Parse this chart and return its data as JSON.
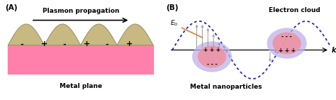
{
  "panel_A": {
    "label": "(A)",
    "title": "Plasmon propagation",
    "subtitle": "Metal plane",
    "pink_color": "#FF80AA",
    "bump_face": "#C8B882",
    "bump_edge": "#9B8B5A",
    "text_color": "#000000"
  },
  "panel_B": {
    "label": "(B)",
    "k_label": "k",
    "e0_label": "$E_0$",
    "electron_cloud_label": "Electron cloud",
    "nanoparticles_label": "Metal nanoparticles",
    "wave_color": "#2222CC",
    "arrow_gray": "#999999",
    "np1_outer": "#C0B0E8",
    "np1_inner": "#F090A0",
    "np2_outer": "#C0B0E8",
    "np2_inner": "#F090A0",
    "orange_color": "#E08020"
  },
  "figsize": [
    4.74,
    1.41
  ],
  "dpi": 100
}
